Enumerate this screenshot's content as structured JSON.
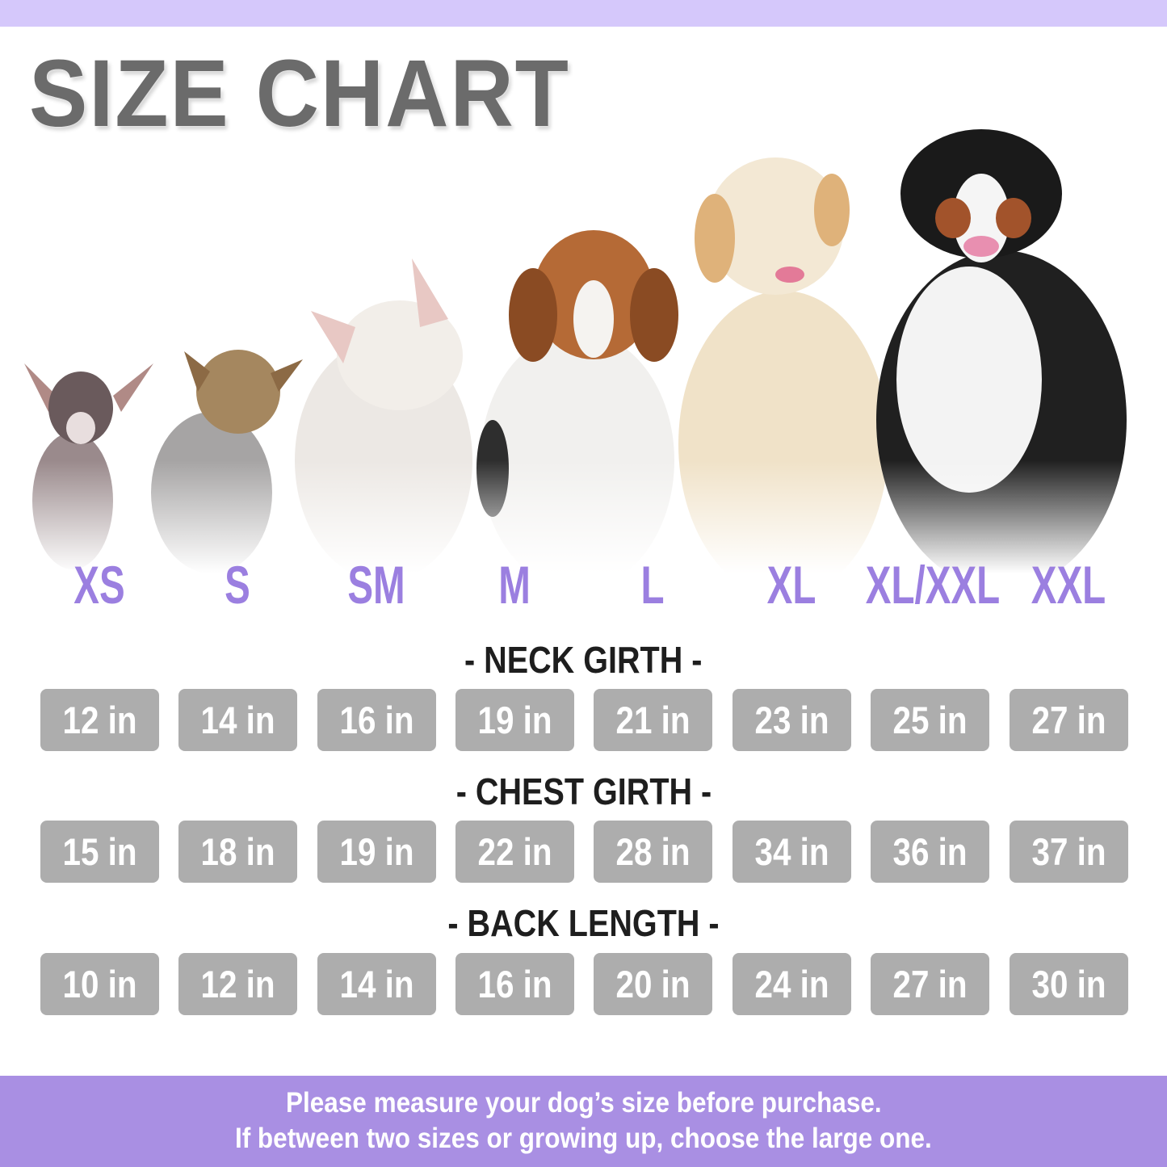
{
  "header": {
    "title": "SIZE CHART"
  },
  "colors": {
    "top_band": "#d5c8fb",
    "size_label": "#9b7fe0",
    "cell": "#adadad",
    "footer": "#a98fe3",
    "title": "#6b6b6b"
  },
  "sizes": [
    "XS",
    "S",
    "SM",
    "M",
    "L",
    "XL",
    "XL/XXL",
    "XXL"
  ],
  "rows": [
    {
      "heading": "- NECK GIRTH -",
      "values": [
        "12 in",
        "14 in",
        "16 in",
        "19 in",
        "21 in",
        "23 in",
        "25 in",
        "27 in"
      ]
    },
    {
      "heading": "- CHEST GIRTH -",
      "values": [
        "15 in",
        "18 in",
        "19 in",
        "22 in",
        "28 in",
        "34 in",
        "36 in",
        "37 in"
      ]
    },
    {
      "heading": "- BACK LENGTH -",
      "values": [
        "10 in",
        "12 in",
        "14 in",
        "16 in",
        "20 in",
        "24 in",
        "27 in",
        "30 in"
      ]
    }
  ],
  "dogs": [
    "chihuahua",
    "yorkshire-terrier",
    "french-bulldog",
    "beagle",
    "golden-retriever",
    "bernese-mountain-dog"
  ],
  "footer": {
    "line1": "Please measure your dog’s size before purchase.",
    "line2": "If between two sizes or growing up, choose the large one."
  }
}
